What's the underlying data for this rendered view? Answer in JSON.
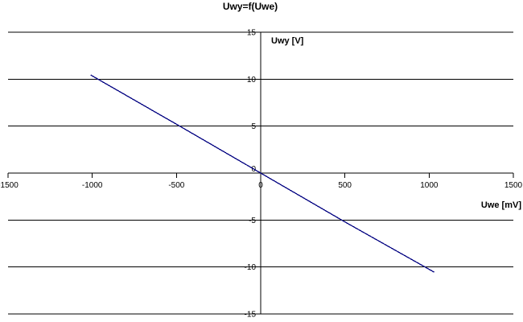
{
  "chart_data": {
    "type": "line",
    "title": "Uwy=f(Uwe)",
    "xlabel": "Uwe [mV]",
    "ylabel": "Uwy [V]",
    "xlim": [
      -1500,
      1500
    ],
    "ylim": [
      -15,
      15
    ],
    "x_ticks": [
      -1500,
      -1000,
      -500,
      0,
      500,
      1000,
      1500
    ],
    "y_ticks": [
      15,
      10,
      5,
      0,
      -5,
      -10,
      -15
    ],
    "grid": "horizontal-only",
    "legend": "none",
    "background_color": "#ffffff",
    "axis_color": "#000000",
    "line_color": "#000080",
    "series": [
      {
        "name": "Uwy",
        "points": [
          [
            -1010,
            10.45
          ],
          [
            -500,
            5.2
          ],
          [
            0,
            0
          ],
          [
            500,
            -5.2
          ],
          [
            1030,
            -10.55
          ]
        ]
      }
    ]
  }
}
